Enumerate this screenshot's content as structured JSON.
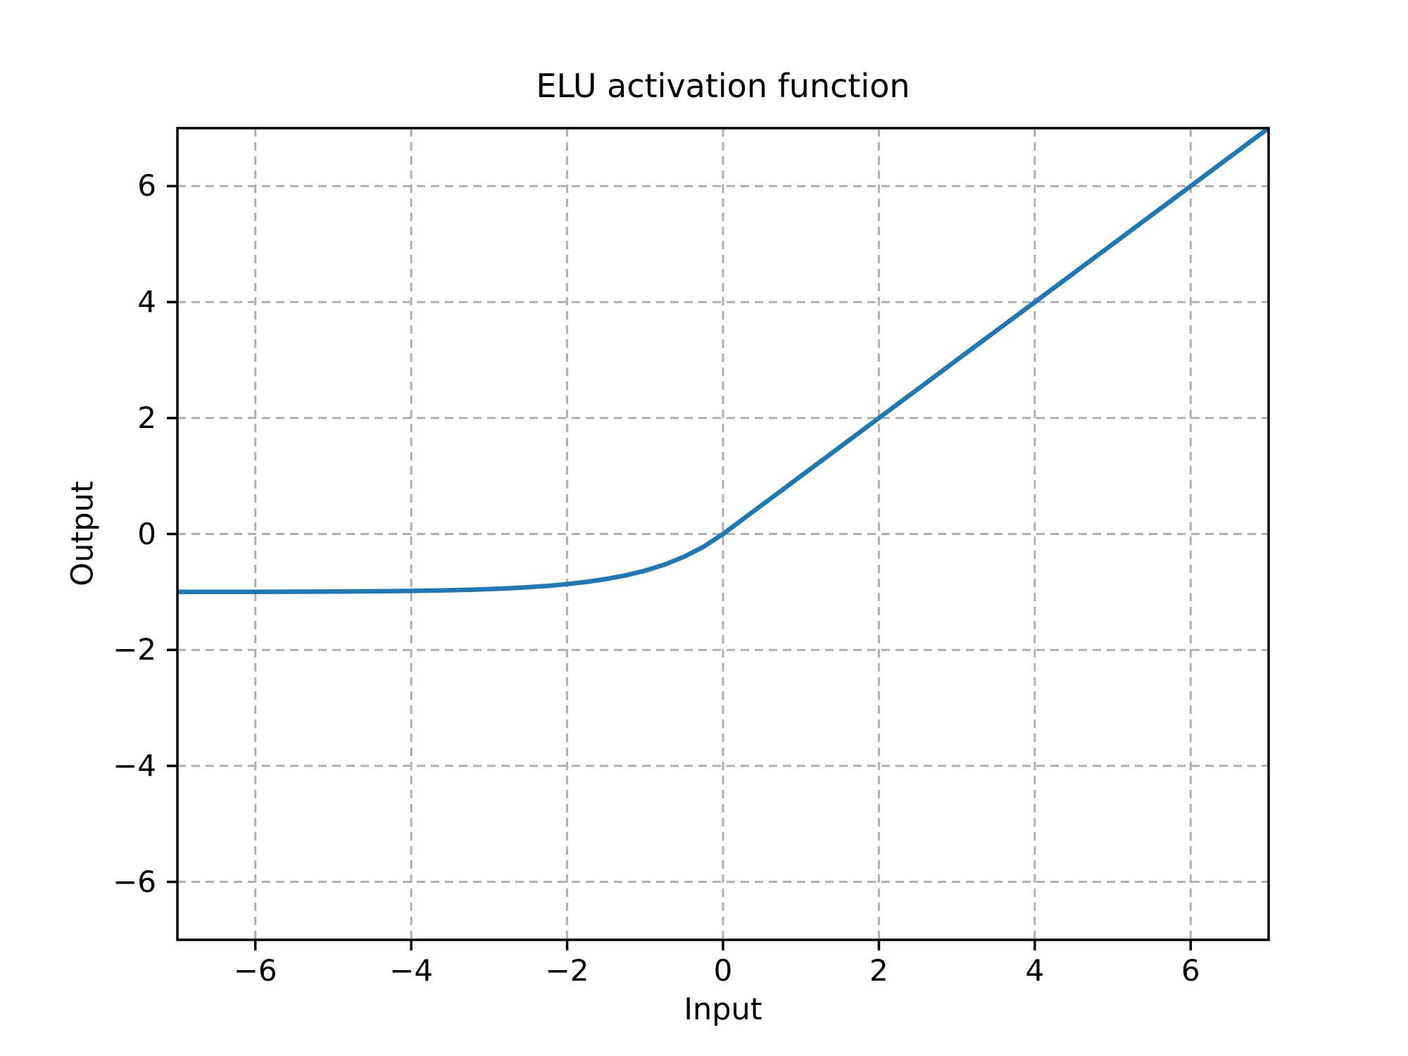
{
  "figure": {
    "title": "ELU activation function",
    "xlabel": "Input",
    "ylabel": "Output"
  },
  "chart_data": {
    "type": "line",
    "title": "ELU activation function",
    "xlabel": "Input",
    "ylabel": "Output",
    "xlim": [
      -7,
      7
    ],
    "ylim": [
      -7,
      7
    ],
    "xtick_values": [
      -6,
      -4,
      -2,
      0,
      2,
      4,
      6
    ],
    "xtick_labels": [
      "−6",
      "−4",
      "−2",
      "0",
      "2",
      "4",
      "6"
    ],
    "ytick_values": [
      -6,
      -4,
      -2,
      0,
      2,
      4,
      6
    ],
    "ytick_labels": [
      "−6",
      "−4",
      "−2",
      "0",
      "2",
      "4",
      "6"
    ],
    "grid": true,
    "grid_style": "dashed",
    "grid_color": "#b0b0b0",
    "line_color": "#1f77b4",
    "spine_color": "#000000",
    "background": "#ffffff",
    "legend": null,
    "series": [
      {
        "name": "ELU",
        "x": [
          -7,
          -6.75,
          -6.5,
          -6.25,
          -6,
          -5.75,
          -5.5,
          -5.25,
          -5,
          -4.75,
          -4.5,
          -4.25,
          -4,
          -3.75,
          -3.5,
          -3.25,
          -3,
          -2.75,
          -2.5,
          -2.25,
          -2,
          -1.75,
          -1.5,
          -1.25,
          -1,
          -0.75,
          -0.5,
          -0.25,
          0,
          0.5,
          1,
          1.5,
          2,
          2.5,
          3,
          3.5,
          4,
          4.5,
          5,
          5.5,
          6,
          6.5,
          7
        ],
        "y": [
          -0.9991,
          -0.9988,
          -0.9985,
          -0.9981,
          -0.9975,
          -0.9968,
          -0.9959,
          -0.9948,
          -0.9933,
          -0.9913,
          -0.9889,
          -0.9857,
          -0.9817,
          -0.9765,
          -0.9698,
          -0.9612,
          -0.9502,
          -0.9361,
          -0.9179,
          -0.8946,
          -0.8647,
          -0.8262,
          -0.7769,
          -0.7135,
          -0.6321,
          -0.5276,
          -0.3935,
          -0.2212,
          0,
          0.5,
          1,
          1.5,
          2,
          2.5,
          3,
          3.5,
          4,
          4.5,
          5,
          5.5,
          6,
          6.5,
          7
        ]
      }
    ]
  }
}
